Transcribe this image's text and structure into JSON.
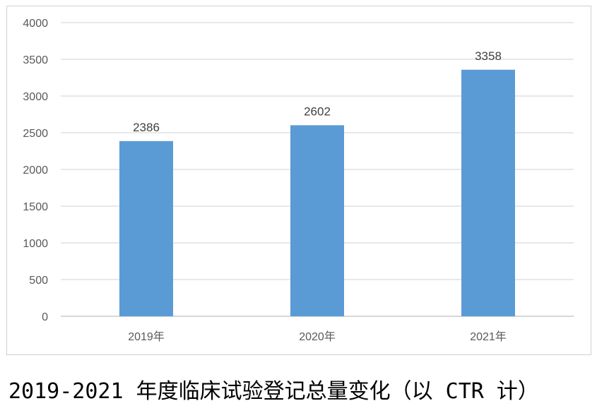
{
  "caption": "2019-2021 年度临床试验登记总量变化（以 CTR 计）",
  "chart_data": {
    "type": "bar",
    "categories": [
      "2019年",
      "2020年",
      "2021年"
    ],
    "values": [
      2386,
      2602,
      3358
    ],
    "data_labels": [
      "2386",
      "2602",
      "3358"
    ],
    "ylim": [
      0,
      4000
    ],
    "yticks": [
      0,
      500,
      1000,
      1500,
      2000,
      2500,
      3000,
      3500,
      4000
    ],
    "grid": true,
    "bar_color": "#5b9bd5",
    "grid_color": "#d9d9d9"
  }
}
